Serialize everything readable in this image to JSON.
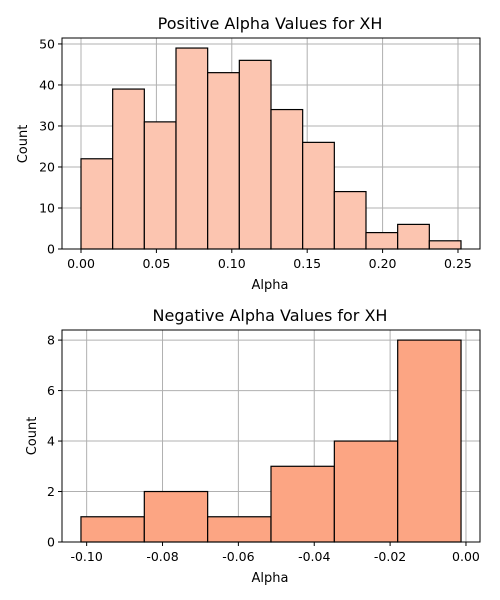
{
  "chart_data": [
    {
      "type": "bar",
      "title": "Positive Alpha Values for XH",
      "xlabel": "Alpha",
      "ylabel": "Count",
      "bin_edges": [
        0.0,
        0.021,
        0.042,
        0.063,
        0.084,
        0.105,
        0.126,
        0.147,
        0.168,
        0.189,
        0.21,
        0.231,
        0.252
      ],
      "values": [
        22,
        39,
        31,
        49,
        43,
        46,
        34,
        26,
        14,
        4,
        6,
        2
      ],
      "xlim": [
        -0.0126,
        0.2646
      ],
      "ylim": [
        0,
        51.45
      ],
      "xticks": [
        0.0,
        0.05,
        0.1,
        0.15,
        0.2,
        0.25
      ],
      "xtick_labels": [
        "0.00",
        "0.05",
        "0.10",
        "0.15",
        "0.20",
        "0.25"
      ],
      "yticks": [
        0,
        10,
        20,
        30,
        40,
        50
      ],
      "ytick_labels": [
        "0",
        "10",
        "20",
        "30",
        "40",
        "50"
      ],
      "color": "#fcc5b0",
      "grid": true
    },
    {
      "type": "bar",
      "title": "Negative Alpha Values for XH",
      "xlabel": "Alpha",
      "ylabel": "Count",
      "bin_edges": [
        -0.1015,
        -0.0848,
        -0.0681,
        -0.0514,
        -0.0347,
        -0.018,
        -0.0013
      ],
      "values": [
        1,
        2,
        1,
        3,
        4,
        8
      ],
      "xlim": [
        -0.1065,
        0.0037
      ],
      "ylim": [
        0,
        8.4
      ],
      "xticks": [
        -0.1,
        -0.08,
        -0.06,
        -0.04,
        -0.02,
        0.0
      ],
      "xtick_labels": [
        "-0.10",
        "-0.08",
        "-0.06",
        "-0.04",
        "-0.02",
        "0.00"
      ],
      "yticks": [
        0,
        2,
        4,
        6,
        8
      ],
      "ytick_labels": [
        "0",
        "2",
        "4",
        "6",
        "8"
      ],
      "color": "#fca583",
      "grid": true
    }
  ]
}
